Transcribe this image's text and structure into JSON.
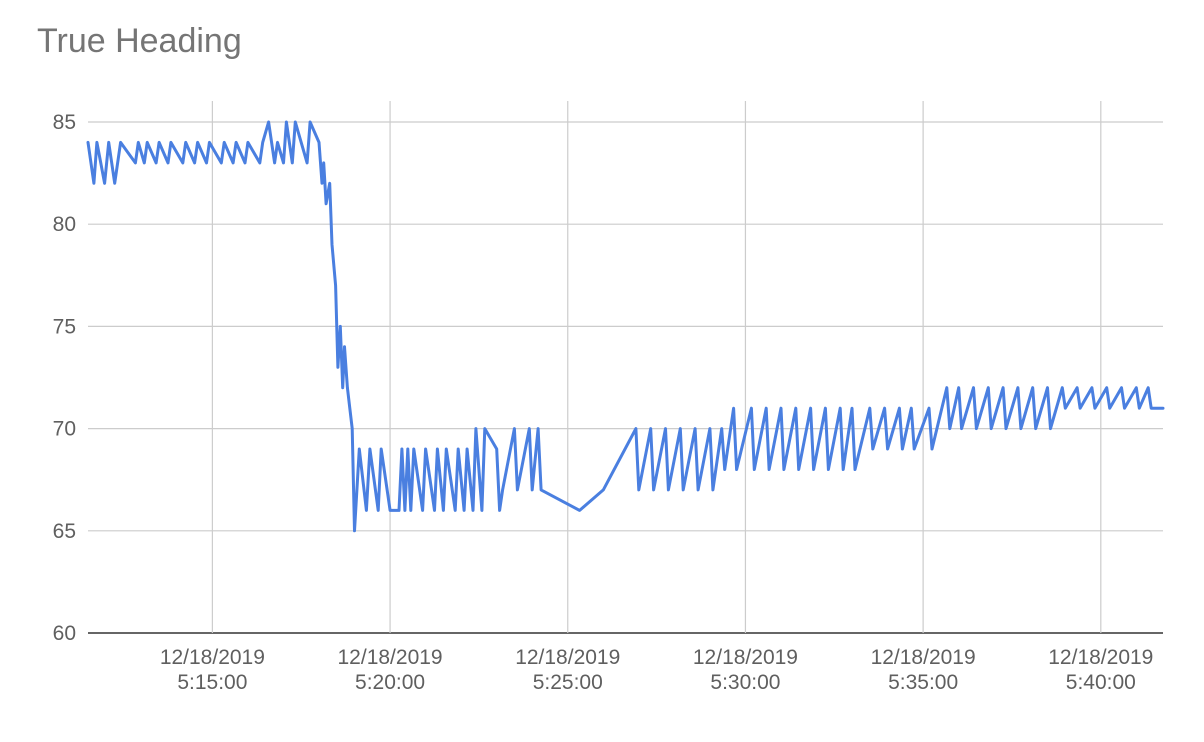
{
  "chart_data": {
    "type": "line",
    "title": "True Heading",
    "xlabel": "",
    "ylabel": "",
    "series_color": "#4a7fe0",
    "grid": true,
    "legend": "none",
    "x_axis": {
      "min": "12/18/2019 5:11:30",
      "max": "12/18/2019 5:41:45",
      "ticks": [
        {
          "value": "12/18/2019 5:15:00",
          "date": "12/18/2019",
          "time": "5:15:00"
        },
        {
          "value": "12/18/2019 5:20:00",
          "date": "12/18/2019",
          "time": "5:20:00"
        },
        {
          "value": "12/18/2019 5:25:00",
          "date": "12/18/2019",
          "time": "5:25:00"
        },
        {
          "value": "12/18/2019 5:30:00",
          "date": "12/18/2019",
          "time": "5:30:00"
        },
        {
          "value": "12/18/2019 5:35:00",
          "date": "12/18/2019",
          "time": "5:35:00"
        },
        {
          "value": "12/18/2019 5:40:00",
          "date": "12/18/2019",
          "time": "5:40:00"
        }
      ]
    },
    "y_axis": {
      "ylim": [
        60,
        85
      ],
      "ticks": [
        60,
        65,
        70,
        75,
        80,
        85
      ]
    },
    "series": [
      {
        "points": [
          [
            "5:11:30",
            84
          ],
          [
            "5:11:40",
            82
          ],
          [
            "5:11:45",
            84
          ],
          [
            "5:11:58",
            82
          ],
          [
            "5:12:05",
            84
          ],
          [
            "5:12:15",
            82
          ],
          [
            "5:12:25",
            84
          ],
          [
            "5:12:50",
            83
          ],
          [
            "5:12:55",
            84
          ],
          [
            "5:13:05",
            83
          ],
          [
            "5:13:10",
            84
          ],
          [
            "5:13:25",
            83
          ],
          [
            "5:13:30",
            84
          ],
          [
            "5:13:45",
            83
          ],
          [
            "5:13:50",
            84
          ],
          [
            "5:14:10",
            83
          ],
          [
            "5:14:15",
            84
          ],
          [
            "5:14:30",
            83
          ],
          [
            "5:14:35",
            84
          ],
          [
            "5:14:50",
            83
          ],
          [
            "5:14:55",
            84
          ],
          [
            "5:15:15",
            83
          ],
          [
            "5:15:20",
            84
          ],
          [
            "5:15:35",
            83
          ],
          [
            "5:15:40",
            84
          ],
          [
            "5:15:55",
            83
          ],
          [
            "5:16:00",
            84
          ],
          [
            "5:16:20",
            83
          ],
          [
            "5:16:25",
            84
          ],
          [
            "5:16:35",
            85
          ],
          [
            "5:16:45",
            83
          ],
          [
            "5:16:50",
            84
          ],
          [
            "5:17:00",
            83
          ],
          [
            "5:17:05",
            85
          ],
          [
            "5:17:15",
            83
          ],
          [
            "5:17:20",
            85
          ],
          [
            "5:17:40",
            83
          ],
          [
            "5:17:45",
            85
          ],
          [
            "5:18:00",
            84
          ],
          [
            "5:18:05",
            82
          ],
          [
            "5:18:08",
            83
          ],
          [
            "5:18:12",
            81
          ],
          [
            "5:18:18",
            82
          ],
          [
            "5:18:22",
            79
          ],
          [
            "5:18:28",
            77
          ],
          [
            "5:18:32",
            73
          ],
          [
            "5:18:36",
            75
          ],
          [
            "5:18:40",
            72
          ],
          [
            "5:18:43",
            74
          ],
          [
            "5:18:48",
            72
          ],
          [
            "5:18:52",
            71
          ],
          [
            "5:18:56",
            70
          ],
          [
            "5:19:00",
            65
          ],
          [
            "5:19:08",
            69
          ],
          [
            "5:19:20",
            66
          ],
          [
            "5:19:26",
            69
          ],
          [
            "5:19:40",
            66
          ],
          [
            "5:19:45",
            69
          ],
          [
            "5:20:00",
            66
          ],
          [
            "5:20:15",
            66
          ],
          [
            "5:20:20",
            69
          ],
          [
            "5:20:25",
            66
          ],
          [
            "5:20:30",
            69
          ],
          [
            "5:20:35",
            66
          ],
          [
            "5:20:40",
            69
          ],
          [
            "5:20:55",
            66
          ],
          [
            "5:21:00",
            69
          ],
          [
            "5:21:15",
            66
          ],
          [
            "5:21:20",
            69
          ],
          [
            "5:21:30",
            66
          ],
          [
            "5:21:35",
            69
          ],
          [
            "5:21:50",
            66
          ],
          [
            "5:21:55",
            69
          ],
          [
            "5:22:05",
            66
          ],
          [
            "5:22:10",
            69
          ],
          [
            "5:22:20",
            66
          ],
          [
            "5:22:25",
            70
          ],
          [
            "5:22:35",
            66
          ],
          [
            "5:22:40",
            70
          ],
          [
            "5:23:00",
            69
          ],
          [
            "5:23:05",
            66
          ],
          [
            "5:23:10",
            67
          ],
          [
            "5:23:30",
            70
          ],
          [
            "5:23:35",
            67
          ],
          [
            "5:23:55",
            70
          ],
          [
            "5:24:00",
            67
          ],
          [
            "5:24:10",
            70
          ],
          [
            "5:24:15",
            67
          ],
          [
            "5:25:20",
            66
          ],
          [
            "5:26:00",
            67
          ],
          [
            "5:26:55",
            70
          ],
          [
            "5:27:00",
            67
          ],
          [
            "5:27:20",
            70
          ],
          [
            "5:27:25",
            67
          ],
          [
            "5:27:45",
            70
          ],
          [
            "5:27:50",
            67
          ],
          [
            "5:28:10",
            70
          ],
          [
            "5:28:15",
            67
          ],
          [
            "5:28:35",
            70
          ],
          [
            "5:28:40",
            67
          ],
          [
            "5:29:00",
            70
          ],
          [
            "5:29:05",
            67
          ],
          [
            "5:29:20",
            70
          ],
          [
            "5:29:25",
            68
          ],
          [
            "5:29:40",
            71
          ],
          [
            "5:29:45",
            68
          ],
          [
            "5:30:10",
            71
          ],
          [
            "5:30:15",
            68
          ],
          [
            "5:30:35",
            71
          ],
          [
            "5:30:40",
            68
          ],
          [
            "5:31:00",
            71
          ],
          [
            "5:31:05",
            68
          ],
          [
            "5:31:25",
            71
          ],
          [
            "5:31:30",
            68
          ],
          [
            "5:31:50",
            71
          ],
          [
            "5:31:55",
            68
          ],
          [
            "5:32:15",
            71
          ],
          [
            "5:32:20",
            68
          ],
          [
            "5:32:40",
            71
          ],
          [
            "5:32:45",
            68
          ],
          [
            "5:33:00",
            71
          ],
          [
            "5:33:05",
            68
          ],
          [
            "5:33:30",
            71
          ],
          [
            "5:33:35",
            69
          ],
          [
            "5:33:55",
            71
          ],
          [
            "5:34:00",
            69
          ],
          [
            "5:34:20",
            71
          ],
          [
            "5:34:25",
            69
          ],
          [
            "5:34:40",
            71
          ],
          [
            "5:34:45",
            69
          ],
          [
            "5:35:10",
            71
          ],
          [
            "5:35:15",
            69
          ],
          [
            "5:35:40",
            72
          ],
          [
            "5:35:45",
            70
          ],
          [
            "5:36:00",
            72
          ],
          [
            "5:36:05",
            70
          ],
          [
            "5:36:25",
            72
          ],
          [
            "5:36:30",
            70
          ],
          [
            "5:36:50",
            72
          ],
          [
            "5:36:55",
            70
          ],
          [
            "5:37:15",
            72
          ],
          [
            "5:37:20",
            70
          ],
          [
            "5:37:40",
            72
          ],
          [
            "5:37:45",
            70
          ],
          [
            "5:38:05",
            72
          ],
          [
            "5:38:10",
            70
          ],
          [
            "5:38:30",
            72
          ],
          [
            "5:38:35",
            70
          ],
          [
            "5:38:55",
            72
          ],
          [
            "5:39:00",
            71
          ],
          [
            "5:39:20",
            72
          ],
          [
            "5:39:25",
            71
          ],
          [
            "5:39:45",
            72
          ],
          [
            "5:39:50",
            71
          ],
          [
            "5:40:10",
            72
          ],
          [
            "5:40:15",
            71
          ],
          [
            "5:40:35",
            72
          ],
          [
            "5:40:40",
            71
          ],
          [
            "5:41:00",
            72
          ],
          [
            "5:41:05",
            71
          ],
          [
            "5:41:20",
            72
          ],
          [
            "5:41:25",
            71
          ],
          [
            "5:41:45",
            71
          ]
        ]
      }
    ]
  }
}
